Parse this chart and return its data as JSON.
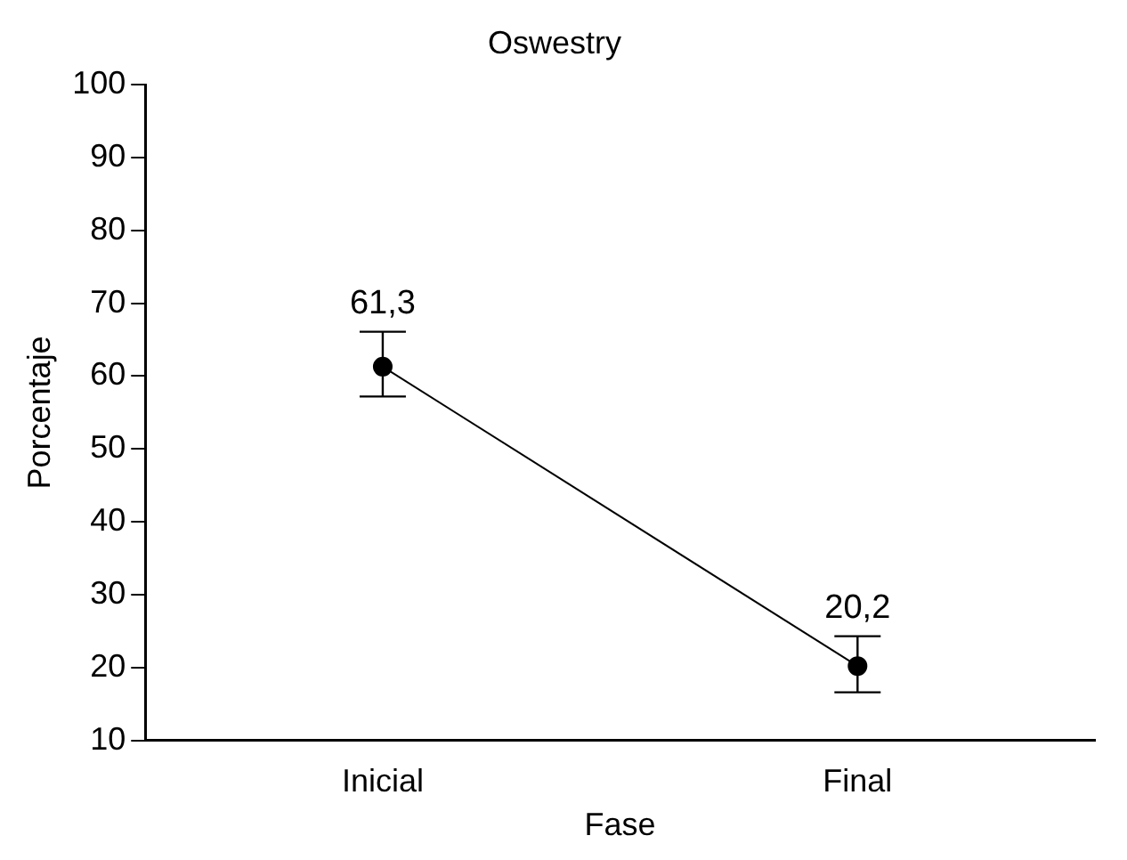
{
  "chart_data": {
    "type": "line",
    "title": "Oswestry",
    "xlabel": "Fase",
    "ylabel": "Porcentaje",
    "categories": [
      "Inicial",
      "Final"
    ],
    "series": [
      {
        "color": "#000000",
        "values": [
          61.3,
          20.2
        ],
        "errors": [
          [
            57.2,
            66.1
          ],
          [
            16.6,
            24.3
          ]
        ],
        "value_labels": [
          "61,3",
          "20,2"
        ]
      }
    ],
    "ylim": [
      10,
      100
    ],
    "yticks": [
      10,
      20,
      30,
      40,
      50,
      60,
      70,
      80,
      90,
      100
    ],
    "grid": false,
    "legend": false,
    "marker": "circle",
    "line_style": "solid"
  }
}
